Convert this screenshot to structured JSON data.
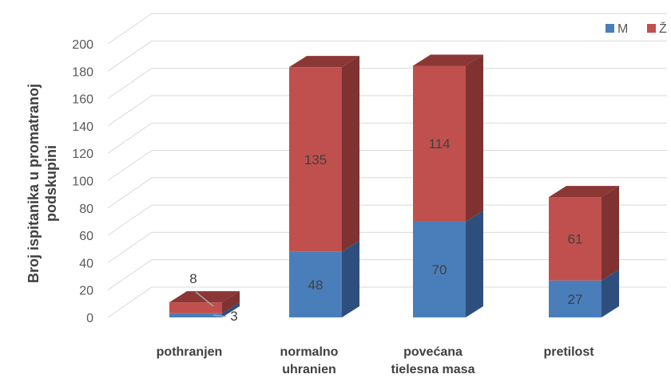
{
  "chart_data": {
    "type": "bar",
    "stacked": true,
    "three_d": true,
    "ylabel_lines": [
      "Broj ispitanika u promatranoj",
      "podskupini"
    ],
    "categories": [
      [
        "pothranjen"
      ],
      [
        "normalno",
        "uhranien"
      ],
      [
        "povećana",
        "tielesna masa"
      ],
      [
        "pretilost"
      ]
    ],
    "series": [
      {
        "name": "M",
        "color": "#4a7ebb",
        "side": "#2e4f7d",
        "top": "#3d6aa0",
        "values": [
          3,
          48,
          70,
          27
        ],
        "labels": [
          "3",
          "48",
          "70",
          "27"
        ]
      },
      {
        "name": "Ž",
        "color": "#c0504d",
        "side": "#7f3230",
        "top": "#8b3735",
        "values": [
          8,
          135,
          114,
          61
        ],
        "labels": [
          "8",
          "135",
          "114",
          "61"
        ]
      }
    ],
    "ylim": [
      0,
      200
    ],
    "yticks": [
      "0",
      "20",
      "40",
      "60",
      "80",
      "100",
      "120",
      "140",
      "160",
      "180",
      "200"
    ],
    "grid": true,
    "legend": "top-right"
  }
}
